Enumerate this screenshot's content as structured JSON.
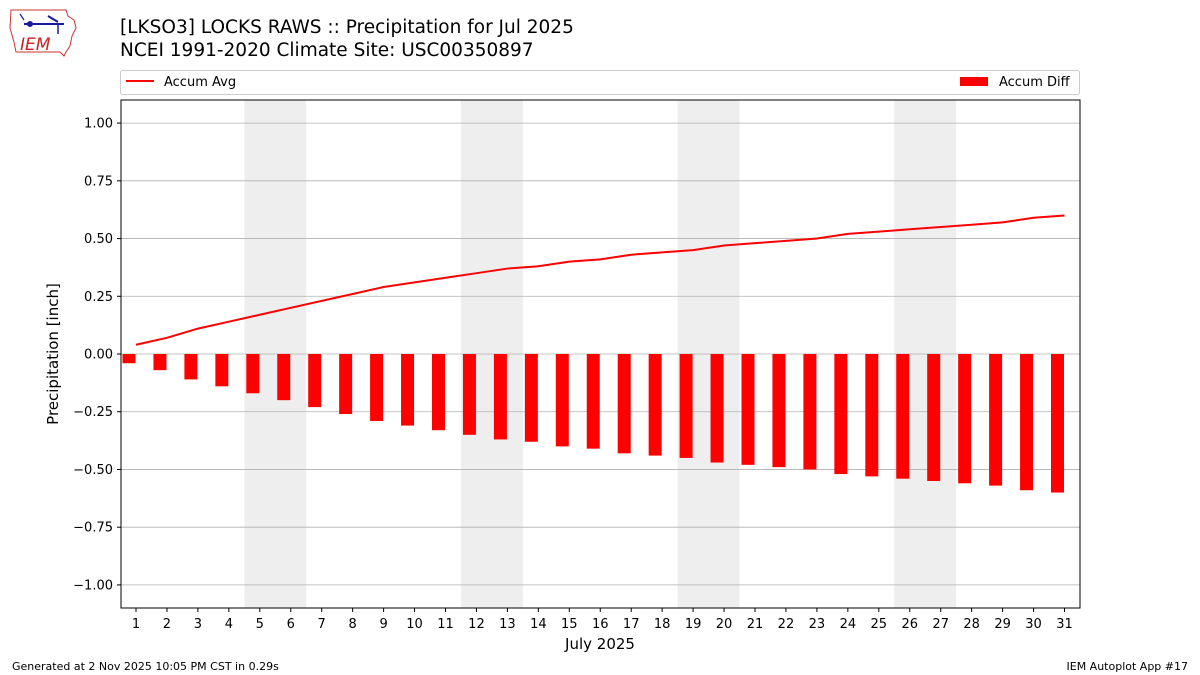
{
  "header": {
    "title_line1": "[LKSO3] LOCKS RAWS :: Precipitation for Jul 2025",
    "title_line2": "NCEI 1991-2020 Climate Site: USC00350897",
    "logo_text": "IEM"
  },
  "footer": {
    "generated": "Generated at 2 Nov 2025 10:05 PM CST in 0.29s",
    "app": "IEM Autoplot App #17"
  },
  "colors": {
    "accent": "#ff0000",
    "weekend_band": "#eeeeee",
    "grid": "#b0b0b0"
  },
  "chart_data": {
    "type": "bar",
    "xlabel": "July 2025",
    "ylabel": "Precipitation [inch]",
    "ylim": [
      -1.1,
      1.1
    ],
    "yticks": [
      -1.0,
      -0.75,
      -0.5,
      -0.25,
      0.0,
      0.25,
      0.5,
      0.75,
      1.0
    ],
    "ytick_labels": [
      "−1.00",
      "−0.75",
      "−0.50",
      "−0.25",
      "0.00",
      "0.25",
      "0.50",
      "0.75",
      "1.00"
    ],
    "days": [
      1,
      2,
      3,
      4,
      5,
      6,
      7,
      8,
      9,
      10,
      11,
      12,
      13,
      14,
      15,
      16,
      17,
      18,
      19,
      20,
      21,
      22,
      23,
      24,
      25,
      26,
      27,
      28,
      29,
      30,
      31
    ],
    "x_tick_labels": [
      "1",
      "2",
      "3",
      "4",
      "5",
      "6",
      "7",
      "8",
      "9",
      "10",
      "11",
      "12",
      "13",
      "14",
      "15",
      "16",
      "17",
      "18",
      "19",
      "20",
      "21",
      "22",
      "23",
      "24",
      "25",
      "26",
      "27",
      "28",
      "29",
      "30",
      "31"
    ],
    "weekend_bands": [
      [
        5,
        6
      ],
      [
        12,
        13
      ],
      [
        19,
        20
      ],
      [
        26,
        27
      ]
    ],
    "grid": "y",
    "legend_placement": "top",
    "series": [
      {
        "name": "Accum Avg",
        "kind": "line",
        "values": [
          0.04,
          0.07,
          0.11,
          0.14,
          0.17,
          0.2,
          0.23,
          0.26,
          0.29,
          0.31,
          0.33,
          0.35,
          0.37,
          0.38,
          0.4,
          0.41,
          0.43,
          0.44,
          0.45,
          0.47,
          0.48,
          0.49,
          0.5,
          0.52,
          0.53,
          0.54,
          0.55,
          0.56,
          0.57,
          0.59,
          0.6
        ]
      },
      {
        "name": "Accum Diff",
        "kind": "bar",
        "values": [
          -0.04,
          -0.07,
          -0.11,
          -0.14,
          -0.17,
          -0.2,
          -0.23,
          -0.26,
          -0.29,
          -0.31,
          -0.33,
          -0.35,
          -0.37,
          -0.38,
          -0.4,
          -0.41,
          -0.43,
          -0.44,
          -0.45,
          -0.47,
          -0.48,
          -0.49,
          -0.5,
          -0.52,
          -0.53,
          -0.54,
          -0.55,
          -0.56,
          -0.57,
          -0.59,
          -0.6
        ]
      }
    ]
  }
}
